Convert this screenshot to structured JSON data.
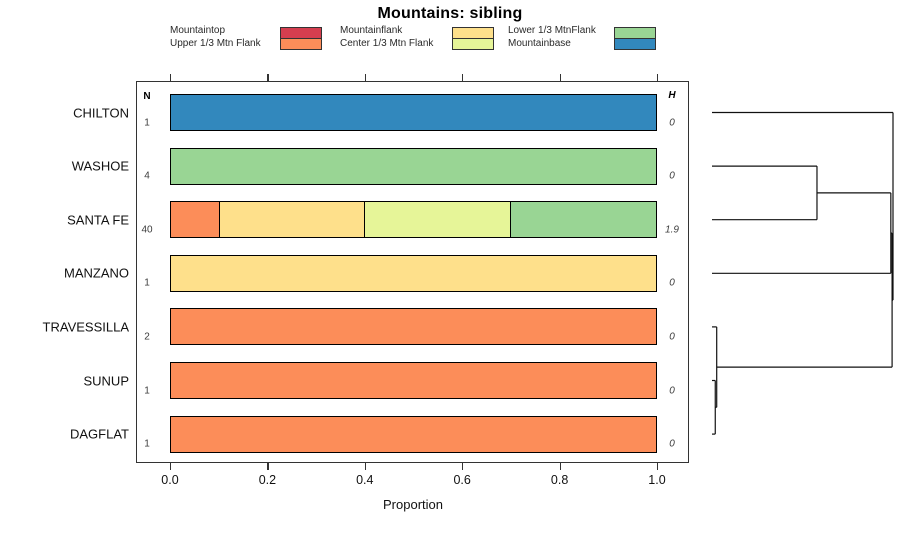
{
  "title": "Mountains: sibling",
  "chart_data": {
    "type": "bar",
    "orientation": "horizontal_stacked",
    "title": "Mountains: sibling",
    "xlabel": "Proportion",
    "xlim": [
      0.0,
      1.0
    ],
    "x_tick_labels": [
      "0.0",
      "0.2",
      "0.4",
      "0.6",
      "0.8",
      "1.0"
    ],
    "x_tick_values": [
      0.0,
      0.2,
      0.4,
      0.6,
      0.8,
      1.0
    ],
    "grid": false,
    "legend_position": "top",
    "n_column_header": "N",
    "h_column_header": "H",
    "legend": [
      {
        "label": "Mountaintop",
        "color": "#D53E4F"
      },
      {
        "label": "Upper 1/3 Mtn Flank",
        "color": "#FC8D59"
      },
      {
        "label": "Mountainflank",
        "color": "#FEE08B"
      },
      {
        "label": "Center 1/3 Mtn Flank",
        "color": "#E6F598"
      },
      {
        "label": "Lower 1/3 MtnFlank",
        "color": "#99D594"
      },
      {
        "label": "Mountainbase",
        "color": "#3288BD"
      }
    ],
    "rows": [
      {
        "label": "CHILTON",
        "n": "1",
        "h": "0",
        "segments": [
          {
            "category": "Mountainbase",
            "value": 1.0
          }
        ]
      },
      {
        "label": "WASHOE",
        "n": "4",
        "h": "0",
        "segments": [
          {
            "category": "Lower 1/3 MtnFlank",
            "value": 1.0
          }
        ]
      },
      {
        "label": "SANTA FE",
        "n": "40",
        "h": "1.9",
        "segments": [
          {
            "category": "Upper 1/3 Mtn Flank",
            "value": 0.1
          },
          {
            "category": "Mountainflank",
            "value": 0.3
          },
          {
            "category": "Center 1/3 Mtn Flank",
            "value": 0.3
          },
          {
            "category": "Lower 1/3 MtnFlank",
            "value": 0.3
          }
        ]
      },
      {
        "label": "MANZANO",
        "n": "1",
        "h": "0",
        "segments": [
          {
            "category": "Mountainflank",
            "value": 1.0
          }
        ]
      },
      {
        "label": "TRAVESSILLA",
        "n": "2",
        "h": "0",
        "segments": [
          {
            "category": "Upper 1/3 Mtn Flank",
            "value": 1.0
          }
        ]
      },
      {
        "label": "SUNUP",
        "n": "1",
        "h": "0",
        "segments": [
          {
            "category": "Upper 1/3 Mtn Flank",
            "value": 1.0
          }
        ]
      },
      {
        "label": "DAGFLAT",
        "n": "1",
        "h": "0",
        "segments": [
          {
            "category": "Upper 1/3 Mtn Flank",
            "value": 1.0
          }
        ]
      }
    ],
    "dendrogram": {
      "side": "right",
      "tree": {
        "height": 1.0,
        "children": [
          {
            "leaf": "CHILTON"
          },
          {
            "height": 0.995,
            "children": [
              {
                "height": 0.988,
                "children": [
                  {
                    "height": 0.58,
                    "children": [
                      {
                        "leaf": "WASHOE"
                      },
                      {
                        "leaf": "SANTA FE"
                      }
                    ]
                  },
                  {
                    "leaf": "MANZANO"
                  }
                ]
              },
              {
                "height": 0.026,
                "children": [
                  {
                    "leaf": "TRAVESSILLA"
                  },
                  {
                    "height": 0.018,
                    "children": [
                      {
                        "leaf": "SUNUP"
                      },
                      {
                        "leaf": "DAGFLAT"
                      }
                    ]
                  }
                ]
              }
            ]
          }
        ]
      }
    }
  }
}
